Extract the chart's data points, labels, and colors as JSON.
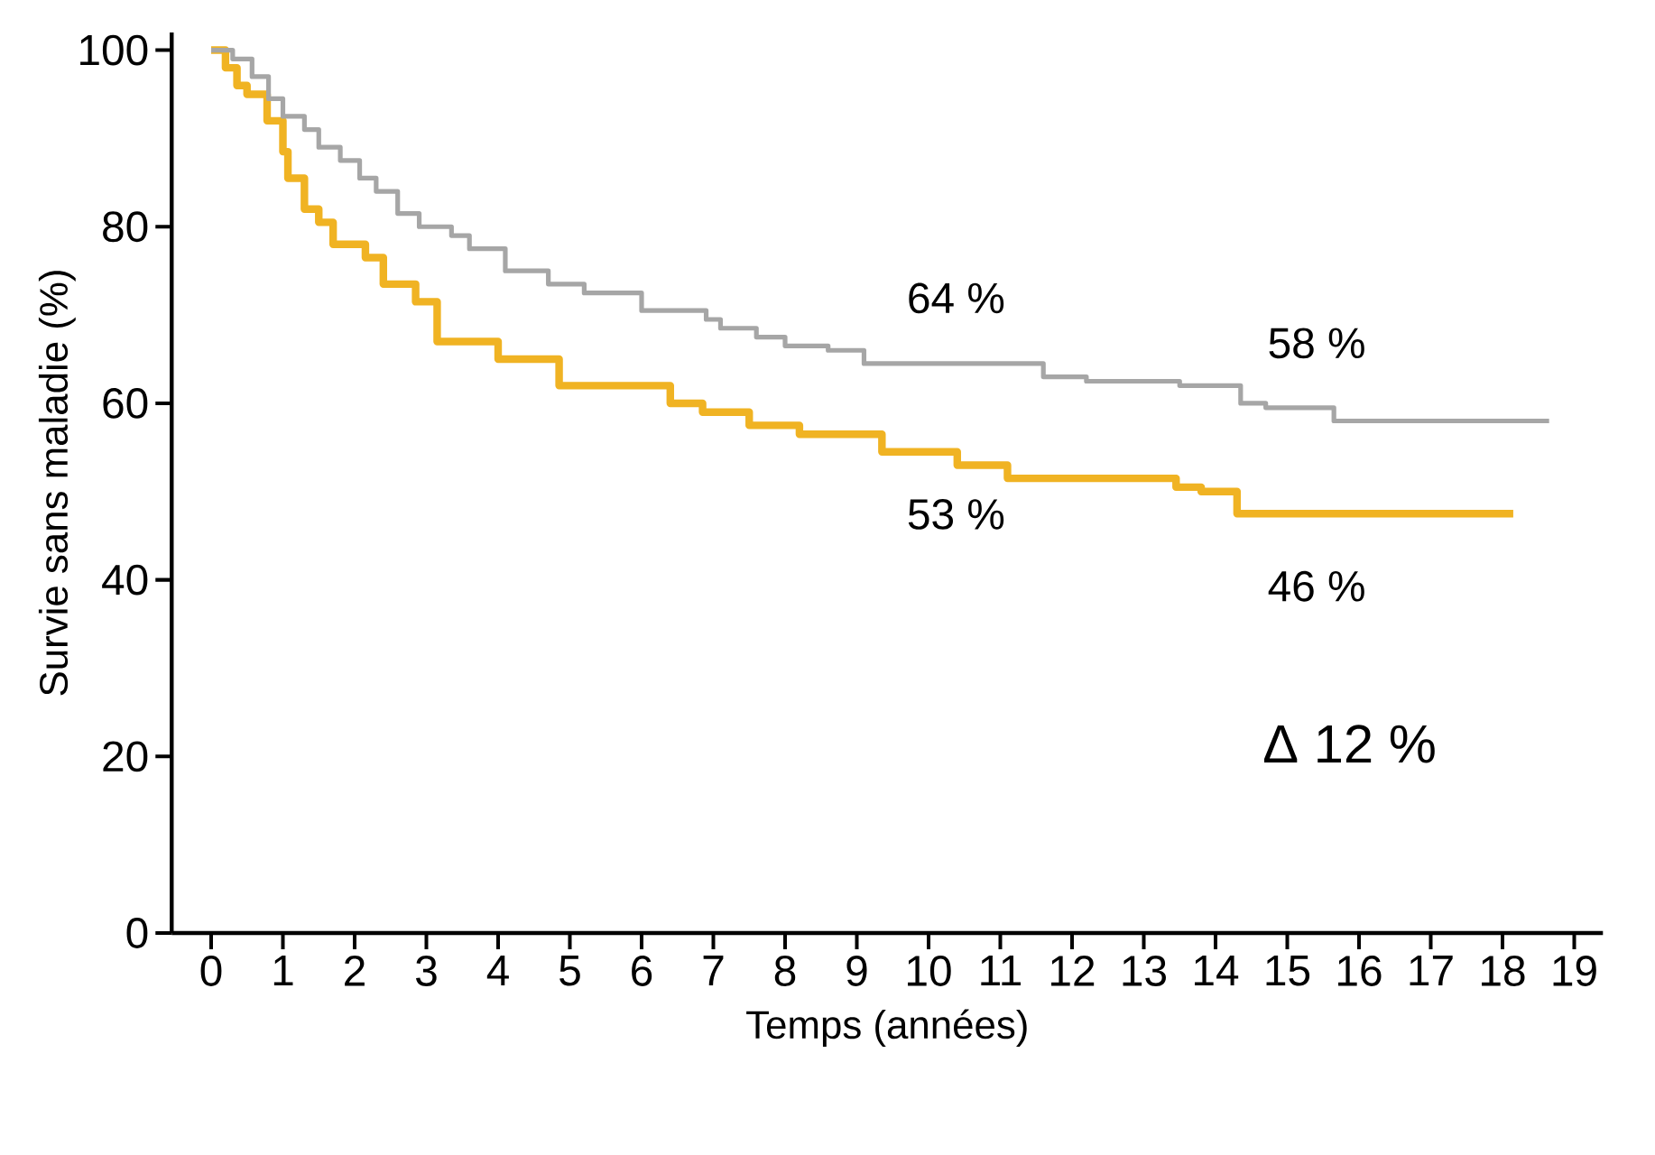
{
  "chart_data": {
    "type": "step",
    "xlabel": "Temps (années)",
    "ylabel": "Survie sans maladie (%)",
    "xlim": [
      -0.55,
      19.4
    ],
    "ylim": [
      0,
      102
    ],
    "xticks": [
      0,
      1,
      2,
      3,
      4,
      5,
      6,
      7,
      8,
      9,
      10,
      11,
      12,
      13,
      14,
      15,
      16,
      17,
      18,
      19
    ],
    "yticks": [
      0,
      20,
      40,
      60,
      80,
      100
    ],
    "grid": false,
    "marker": "none",
    "line_style": "solid",
    "series": [
      {
        "color": "#a6a6a6",
        "x": [
          0,
          0.3,
          0.57,
          0.8,
          1.0,
          1.3,
          1.5,
          1.8,
          2.07,
          2.3,
          2.6,
          2.9,
          3.35,
          3.6,
          4.1,
          4.7,
          5.2,
          6.0,
          6.9,
          7.1,
          7.6,
          8.0,
          8.6,
          9.1,
          11.6,
          12.2,
          13.5,
          14.35,
          14.7,
          15.65,
          18.65
        ],
        "values": [
          100,
          99,
          97,
          94.5,
          92.5,
          91,
          89,
          87.5,
          85.5,
          84,
          81.5,
          80,
          79,
          77.5,
          75,
          73.5,
          72.5,
          70.5,
          69.5,
          68.5,
          67.5,
          66.5,
          66,
          64.5,
          63,
          62.5,
          62,
          60,
          59.5,
          58,
          58
        ]
      },
      {
        "color": "#f0b323",
        "x": [
          0,
          0.2,
          0.36,
          0.5,
          0.78,
          1.0,
          1.07,
          1.3,
          1.5,
          1.7,
          2.15,
          2.4,
          2.85,
          3.15,
          4.0,
          4.85,
          6.4,
          6.85,
          7.5,
          8.2,
          9.35,
          10.4,
          11.1,
          13.45,
          13.8,
          14.3,
          18.15
        ],
        "values": [
          100,
          98,
          96,
          95,
          92,
          88.5,
          85.5,
          82,
          80.5,
          78,
          76.5,
          73.5,
          71.5,
          67,
          65,
          62,
          60,
          59,
          57.5,
          56.5,
          54.5,
          53,
          51.5,
          50.5,
          50,
          47.5,
          47.5
        ]
      }
    ],
    "annotations": [
      "64 %",
      "53 %",
      "58 %",
      "46 %",
      "Δ 12 %"
    ]
  }
}
